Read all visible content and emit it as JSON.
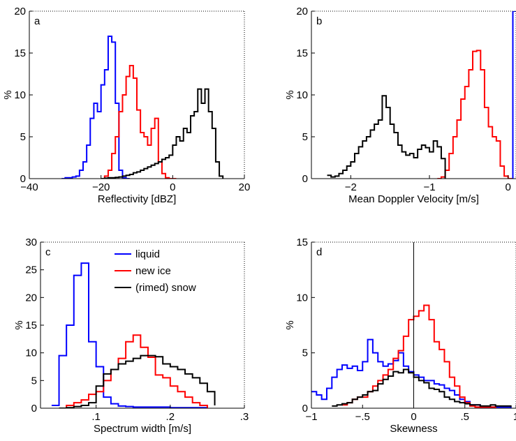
{
  "chart_data": [
    {
      "type": "line",
      "panel_label": "a",
      "xlabel": "Reflectivity [dBZ]",
      "ylabel": "%",
      "xlim": [
        -40,
        20
      ],
      "ylim": [
        0,
        20
      ],
      "xticks": [
        -40,
        -20,
        0,
        20
      ],
      "yticks": [
        0,
        5,
        10,
        15,
        20
      ],
      "grid": false,
      "series": [
        {
          "color": "#0000ff",
          "x": [
            -31,
            -30,
            -29,
            -28,
            -27,
            -26,
            -25,
            -24,
            -23,
            -22,
            -21,
            -20,
            -19,
            -18,
            -17,
            -16,
            -15,
            -14,
            -13,
            -12
          ],
          "values": [
            0,
            0.1,
            0.1,
            0.2,
            0.3,
            1,
            2,
            4,
            7.2,
            9,
            8,
            11.2,
            13,
            17,
            16.3,
            9,
            1,
            0.1,
            0,
            0
          ]
        },
        {
          "color": "#ff0000",
          "x": [
            -20,
            -19,
            -18,
            -17,
            -16,
            -15,
            -14,
            -13,
            -12,
            -11,
            -10,
            -9,
            -8,
            -7,
            -6,
            -5,
            -4,
            -3,
            -2,
            -1,
            0,
            1
          ],
          "values": [
            0,
            0.3,
            1,
            3,
            5,
            8,
            10,
            12.2,
            13.5,
            12,
            8.2,
            5.5,
            5,
            4,
            6,
            7.2,
            2,
            0.6,
            0.1,
            0,
            0,
            0
          ]
        },
        {
          "color": "#000000",
          "x": [
            -20,
            -19,
            -18,
            -17,
            -16,
            -15,
            -14,
            -13,
            -12,
            -11,
            -10,
            -9,
            -8,
            -7,
            -6,
            -5,
            -4,
            -3,
            -2,
            -1,
            0,
            1,
            2,
            3,
            4,
            5,
            6,
            7,
            8,
            9,
            10,
            11,
            12,
            13,
            14
          ],
          "values": [
            0,
            0.05,
            0.1,
            0.1,
            0.15,
            0.2,
            0.3,
            0.4,
            0.5,
            0.7,
            0.8,
            1,
            1.2,
            1.4,
            1.6,
            1.8,
            2,
            2.3,
            2.5,
            2.8,
            4,
            5,
            4.5,
            6,
            5.5,
            7.5,
            8,
            10.7,
            9,
            10.7,
            8,
            6,
            2,
            0.3,
            0
          ]
        }
      ]
    },
    {
      "type": "line",
      "panel_label": "b",
      "xlabel": "Mean Doppler Velocity [m/s]",
      "ylabel": "%",
      "xlim": [
        -2.5,
        0.1
      ],
      "ylim": [
        0,
        20
      ],
      "xticks": [
        -2,
        -1,
        0
      ],
      "yticks": [
        0,
        5,
        10,
        15,
        20
      ],
      "grid": false,
      "series": [
        {
          "color": "#0000ff",
          "x": [
            0.04,
            0.06,
            0.08,
            0.1
          ],
          "values": [
            0,
            20,
            20,
            20
          ]
        },
        {
          "color": "#ff0000",
          "x": [
            -0.9,
            -0.85,
            -0.8,
            -0.75,
            -0.7,
            -0.65,
            -0.6,
            -0.55,
            -0.5,
            -0.45,
            -0.4,
            -0.35,
            -0.3,
            -0.25,
            -0.2,
            -0.15,
            -0.1,
            -0.05,
            0,
            0.05
          ],
          "values": [
            0,
            0.2,
            1,
            3,
            5,
            7,
            9.5,
            11,
            13,
            15.2,
            15.3,
            13,
            8.5,
            6.2,
            5,
            4.5,
            1.5,
            0.3,
            0,
            0
          ]
        },
        {
          "color": "#000000",
          "x": [
            -2.3,
            -2.25,
            -2.2,
            -2.15,
            -2.1,
            -2.05,
            -2,
            -1.95,
            -1.9,
            -1.85,
            -1.8,
            -1.75,
            -1.7,
            -1.65,
            -1.6,
            -1.55,
            -1.5,
            -1.45,
            -1.4,
            -1.35,
            -1.3,
            -1.25,
            -1.2,
            -1.15,
            -1.1,
            -1.05,
            -1,
            -0.95,
            -0.9,
            -0.85,
            -0.8
          ],
          "values": [
            0.4,
            0.2,
            0.3,
            0.6,
            1,
            1.5,
            2,
            3,
            3.8,
            4.5,
            5,
            5.8,
            6.5,
            7,
            9.9,
            8.5,
            6.5,
            5.5,
            4,
            3.2,
            2.8,
            3,
            2.5,
            3.5,
            4,
            3.7,
            3.2,
            4.5,
            3.8,
            2.4,
            0
          ]
        }
      ]
    },
    {
      "type": "line",
      "panel_label": "c",
      "xlabel": "Spectrum width [m/s]",
      "ylabel": "%",
      "xlim": [
        0.025,
        0.3
      ],
      "ylim": [
        0,
        30
      ],
      "xticks": [
        0.1,
        0.2,
        0.3
      ],
      "yticks": [
        0,
        5,
        10,
        15,
        20,
        25,
        30
      ],
      "grid": false,
      "legend": {
        "position": "top-right",
        "entries": [
          "liquid",
          "new ice",
          "(rimed) snow"
        ]
      },
      "series": [
        {
          "name": "liquid",
          "color": "#0000ff",
          "x": [
            0.04,
            0.05,
            0.06,
            0.07,
            0.08,
            0.09,
            0.1,
            0.11,
            0.12,
            0.13,
            0.14,
            0.15,
            0.16,
            0.17,
            0.18,
            0.19,
            0.2,
            0.21,
            0.22,
            0.23,
            0.24,
            0.25
          ],
          "values": [
            0.5,
            9.5,
            15,
            24,
            26.2,
            12,
            7.5,
            2,
            0.8,
            0.4,
            0.3,
            0.2,
            0.2,
            0.2,
            0.2,
            0.2,
            0.1,
            0.1,
            0.1,
            0.1,
            0.1,
            0
          ]
        },
        {
          "name": "new ice",
          "color": "#ff0000",
          "x": [
            0.05,
            0.06,
            0.07,
            0.08,
            0.09,
            0.1,
            0.11,
            0.12,
            0.13,
            0.14,
            0.15,
            0.16,
            0.17,
            0.18,
            0.19,
            0.2,
            0.21,
            0.22,
            0.23,
            0.24,
            0.25
          ],
          "values": [
            0,
            0.5,
            1,
            1.5,
            2.5,
            3,
            5,
            7,
            9,
            12,
            13.2,
            11,
            9.2,
            6,
            5.5,
            4,
            3,
            2,
            1,
            0.5,
            0
          ]
        },
        {
          "name": "(rimed) snow",
          "color": "#000000",
          "x": [
            0.05,
            0.06,
            0.07,
            0.08,
            0.09,
            0.1,
            0.11,
            0.12,
            0.13,
            0.14,
            0.15,
            0.16,
            0.17,
            0.18,
            0.19,
            0.2,
            0.21,
            0.22,
            0.23,
            0.24,
            0.25,
            0.26
          ],
          "values": [
            0,
            0.1,
            0.3,
            0.5,
            1,
            4,
            6.2,
            7,
            8,
            8.5,
            9,
            9.5,
            9.5,
            9.3,
            8,
            7.5,
            7,
            6.2,
            5.5,
            4.5,
            3,
            0.5
          ]
        }
      ]
    },
    {
      "type": "line",
      "panel_label": "d",
      "xlabel": "Skewness",
      "ylabel": "%",
      "xlim": [
        -1,
        1
      ],
      "ylim": [
        0,
        15
      ],
      "xticks": [
        -1,
        -0.5,
        0,
        0.5,
        1
      ],
      "yticks": [
        0,
        5,
        10,
        15
      ],
      "grid": false,
      "vline": 0,
      "series": [
        {
          "color": "#0000ff",
          "x": [
            -1,
            -0.95,
            -0.9,
            -0.85,
            -0.8,
            -0.75,
            -0.7,
            -0.65,
            -0.6,
            -0.55,
            -0.5,
            -0.45,
            -0.4,
            -0.35,
            -0.3,
            -0.25,
            -0.2,
            -0.15,
            -0.1,
            -0.05,
            0,
            0.05,
            0.1,
            0.15,
            0.2,
            0.25,
            0.3,
            0.35,
            0.4,
            0.45,
            0.5,
            0.55,
            0.6,
            0.65,
            0.7,
            0.75,
            0.8,
            0.85,
            0.9,
            0.95
          ],
          "values": [
            1.5,
            1.2,
            0.8,
            1.8,
            2.8,
            3.5,
            3.9,
            3.6,
            3.8,
            3.4,
            4.2,
            6.2,
            5,
            4.2,
            3.8,
            4,
            4.3,
            5,
            3.8,
            3.3,
            3,
            2.8,
            2.5,
            2.5,
            2.2,
            2.1,
            1.8,
            1.6,
            1.2,
            0.8,
            0.6,
            0.3,
            0.3,
            0.1,
            0.1,
            0.1,
            0.1,
            0.1,
            0.1,
            0
          ]
        },
        {
          "color": "#ff0000",
          "x": [
            -0.7,
            -0.65,
            -0.6,
            -0.55,
            -0.5,
            -0.45,
            -0.4,
            -0.35,
            -0.3,
            -0.25,
            -0.2,
            -0.15,
            -0.1,
            -0.05,
            0,
            0.05,
            0.1,
            0.15,
            0.2,
            0.25,
            0.3,
            0.35,
            0.4,
            0.45,
            0.5,
            0.55,
            0.6,
            0.65,
            0.7,
            0.75,
            0.8
          ],
          "values": [
            0.3,
            0.5,
            0.8,
            1,
            1,
            1.5,
            2,
            2.5,
            3,
            3.5,
            4.5,
            5.2,
            6.5,
            8,
            8.3,
            8.8,
            9.3,
            8,
            6,
            5.3,
            4.2,
            2.8,
            2,
            1,
            0.5,
            0.2,
            0.1,
            0.1,
            0.1,
            0.1,
            0
          ]
        },
        {
          "color": "#000000",
          "x": [
            -0.8,
            -0.75,
            -0.7,
            -0.65,
            -0.6,
            -0.55,
            -0.5,
            -0.45,
            -0.4,
            -0.35,
            -0.3,
            -0.25,
            -0.2,
            -0.15,
            -0.1,
            -0.05,
            0,
            0.05,
            0.1,
            0.15,
            0.2,
            0.25,
            0.3,
            0.35,
            0.4,
            0.45,
            0.5,
            0.55,
            0.6,
            0.65,
            0.7,
            0.75,
            0.8,
            0.85,
            0.9,
            0.95
          ],
          "values": [
            0.2,
            0.3,
            0.4,
            0.5,
            0.8,
            1,
            1.2,
            1.5,
            1.6,
            2.2,
            2.6,
            2.9,
            3.3,
            3.2,
            3.5,
            3.2,
            2.8,
            2.5,
            2.3,
            1.8,
            1.7,
            1.5,
            1,
            0.8,
            0.6,
            0.5,
            0.4,
            0.3,
            0.3,
            0.2,
            0.2,
            0.3,
            0.2,
            0.2,
            0.2,
            0.1
          ]
        }
      ]
    }
  ]
}
